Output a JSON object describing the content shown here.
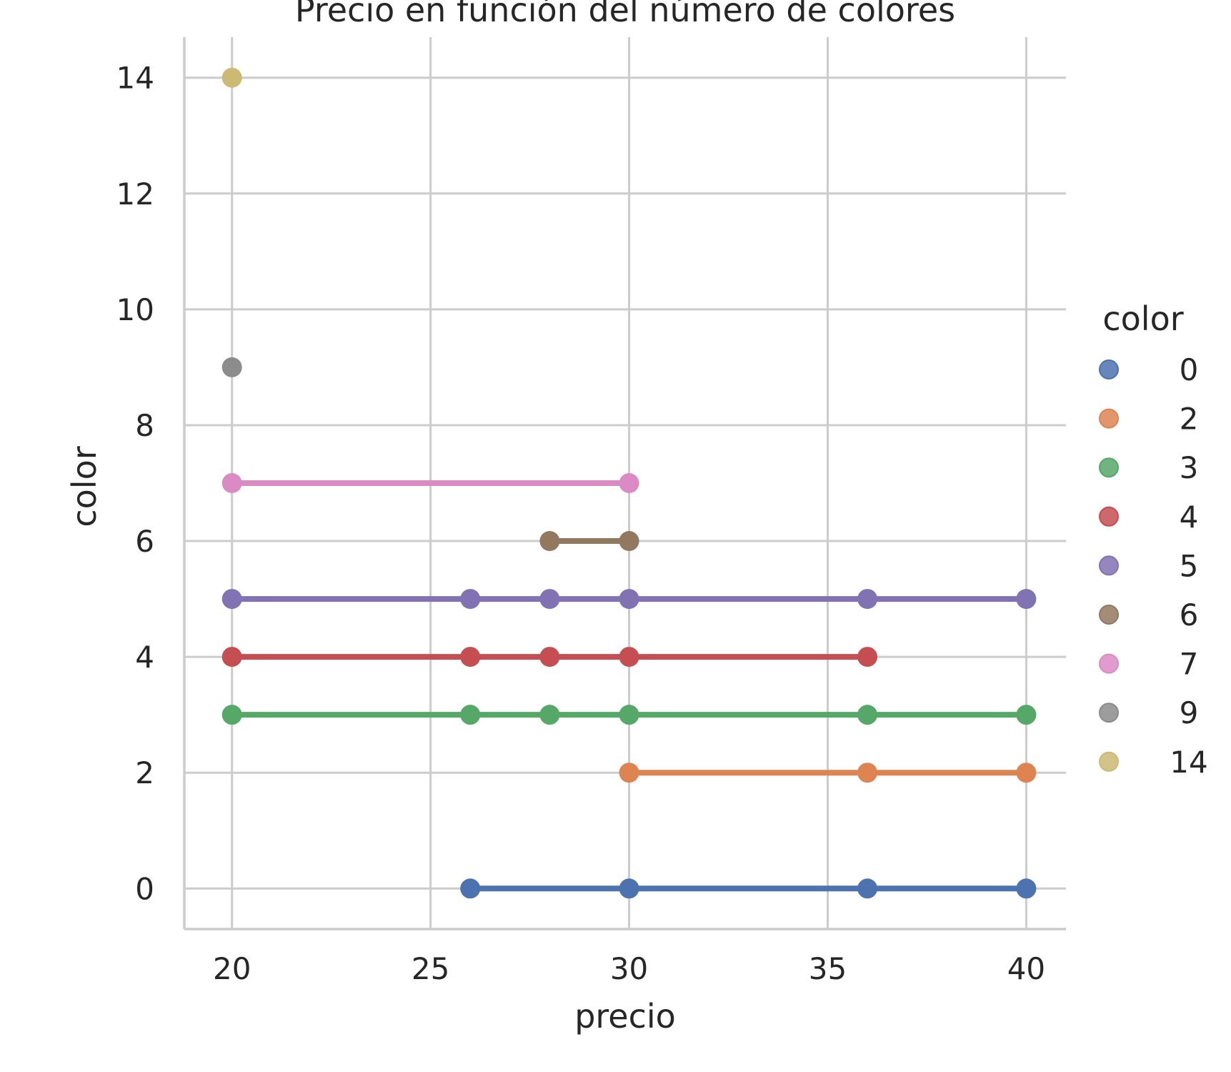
{
  "chart_data": {
    "type": "line",
    "title": "Precio en función del número de colores",
    "xlabel": "precio",
    "ylabel": "color",
    "xlim": [
      18.8,
      41.0
    ],
    "ylim": [
      -0.7,
      14.7
    ],
    "xticks": [
      20,
      25,
      30,
      35,
      40
    ],
    "yticks": [
      0,
      2,
      4,
      6,
      8,
      10,
      12,
      14
    ],
    "grid": true,
    "legend": {
      "title": "color",
      "position": "right"
    },
    "series": [
      {
        "name": "0",
        "color": "#4c72b0",
        "x": [
          26,
          30,
          36,
          40
        ],
        "y": [
          0,
          0,
          0,
          0
        ]
      },
      {
        "name": "2",
        "color": "#dd8452",
        "x": [
          30,
          36,
          40
        ],
        "y": [
          2,
          2,
          2
        ]
      },
      {
        "name": "3",
        "color": "#55a868",
        "x": [
          20,
          26,
          28,
          30,
          36,
          40
        ],
        "y": [
          3,
          3,
          3,
          3,
          3,
          3
        ]
      },
      {
        "name": "4",
        "color": "#c44e52",
        "x": [
          20,
          26,
          28,
          30,
          36
        ],
        "y": [
          4,
          4,
          4,
          4,
          4
        ]
      },
      {
        "name": "5",
        "color": "#8172b3",
        "x": [
          20,
          26,
          28,
          30,
          36,
          40
        ],
        "y": [
          5,
          5,
          5,
          5,
          5,
          5
        ]
      },
      {
        "name": "6",
        "color": "#937860",
        "x": [
          28,
          30
        ],
        "y": [
          6,
          6
        ]
      },
      {
        "name": "7",
        "color": "#da8bc3",
        "x": [
          20,
          30
        ],
        "y": [
          7,
          7
        ]
      },
      {
        "name": "9",
        "color": "#8c8c8c",
        "x": [
          20
        ],
        "y": [
          9
        ]
      },
      {
        "name": "14",
        "color": "#ccb974",
        "x": [
          20
        ],
        "y": [
          14
        ]
      }
    ]
  }
}
